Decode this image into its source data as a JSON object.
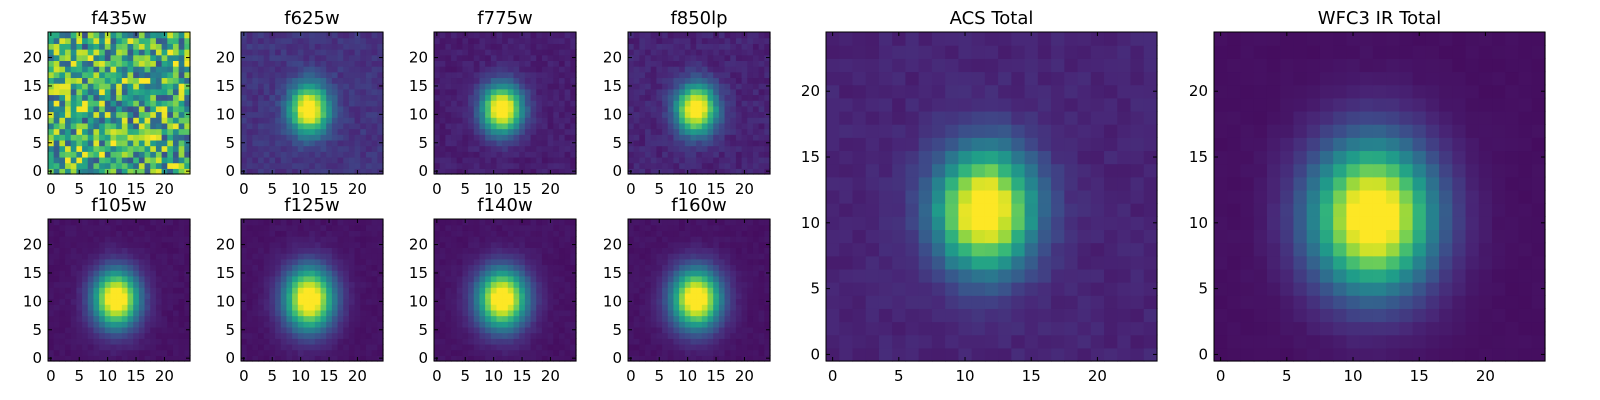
{
  "figure": {
    "description_type": "heatmap-grid",
    "colormap": [
      "#440154",
      "#482878",
      "#3e4989",
      "#31688e",
      "#26828e",
      "#1f9e89",
      "#35b779",
      "#6ece58",
      "#b5de2b",
      "#fde725"
    ],
    "background_color": "#ffffff"
  },
  "chart_data": [
    {
      "type": "heatmap",
      "title": "f435w",
      "grid_size": 25,
      "pattern": "noise",
      "peak": [
        11.5,
        11
      ],
      "spread": [
        3,
        3
      ],
      "noise": 0.5,
      "xlim": [
        0,
        24
      ],
      "ylim": [
        0,
        24
      ],
      "xticks": [
        0,
        5,
        10,
        15,
        20
      ],
      "yticks": [
        0,
        5,
        10,
        15,
        20
      ],
      "colormap": "viridis"
    },
    {
      "type": "heatmap",
      "title": "f625w",
      "grid_size": 25,
      "pattern": "blob",
      "peak": [
        11.5,
        11
      ],
      "spread": [
        2.4,
        3.0
      ],
      "noise": 0.09,
      "base": 0.15,
      "xlim": [
        0,
        24
      ],
      "ylim": [
        0,
        24
      ],
      "xticks": [
        0,
        5,
        10,
        15,
        20
      ],
      "yticks": [
        0,
        5,
        10,
        15,
        20
      ],
      "colormap": "viridis"
    },
    {
      "type": "heatmap",
      "title": "f775w",
      "grid_size": 25,
      "pattern": "blob",
      "peak": [
        11.5,
        11
      ],
      "spread": [
        2.5,
        3.0
      ],
      "noise": 0.06,
      "base": 0.08,
      "xlim": [
        0,
        24
      ],
      "ylim": [
        0,
        24
      ],
      "xticks": [
        0,
        5,
        10,
        15,
        20
      ],
      "yticks": [
        0,
        5,
        10,
        15,
        20
      ],
      "colormap": "viridis"
    },
    {
      "type": "heatmap",
      "title": "f850lp",
      "grid_size": 25,
      "pattern": "blob",
      "peak": [
        11.5,
        11
      ],
      "spread": [
        2.5,
        3.0
      ],
      "noise": 0.08,
      "base": 0.1,
      "xlim": [
        0,
        24
      ],
      "ylim": [
        0,
        24
      ],
      "xticks": [
        0,
        5,
        10,
        15,
        20
      ],
      "yticks": [
        0,
        5,
        10,
        15,
        20
      ],
      "colormap": "viridis"
    },
    {
      "type": "heatmap",
      "title": "f105w",
      "grid_size": 25,
      "pattern": "blob",
      "peak": [
        11.5,
        10.5
      ],
      "spread": [
        2.8,
        3.5
      ],
      "noise": 0.03,
      "base": 0.05,
      "xlim": [
        0,
        24
      ],
      "ylim": [
        0,
        24
      ],
      "xticks": [
        0,
        5,
        10,
        15,
        20
      ],
      "yticks": [
        0,
        5,
        10,
        15,
        20
      ],
      "colormap": "viridis"
    },
    {
      "type": "heatmap",
      "title": "f125w",
      "grid_size": 25,
      "pattern": "blob",
      "peak": [
        11.5,
        10.5
      ],
      "spread": [
        3.0,
        3.8
      ],
      "noise": 0.03,
      "base": 0.05,
      "xlim": [
        0,
        24
      ],
      "ylim": [
        0,
        24
      ],
      "xticks": [
        0,
        5,
        10,
        15,
        20
      ],
      "yticks": [
        0,
        5,
        10,
        15,
        20
      ],
      "colormap": "viridis"
    },
    {
      "type": "heatmap",
      "title": "f140w",
      "grid_size": 25,
      "pattern": "blob",
      "peak": [
        11.5,
        10.5
      ],
      "spread": [
        3.0,
        3.6
      ],
      "noise": 0.03,
      "base": 0.05,
      "xlim": [
        0,
        24
      ],
      "ylim": [
        0,
        24
      ],
      "xticks": [
        0,
        5,
        10,
        15,
        20
      ],
      "yticks": [
        0,
        5,
        10,
        15,
        20
      ],
      "colormap": "viridis"
    },
    {
      "type": "heatmap",
      "title": "f160w",
      "grid_size": 25,
      "pattern": "blob",
      "peak": [
        11.5,
        10.5
      ],
      "spread": [
        3.0,
        3.6
      ],
      "noise": 0.03,
      "base": 0.05,
      "xlim": [
        0,
        24
      ],
      "ylim": [
        0,
        24
      ],
      "xticks": [
        0,
        5,
        10,
        15,
        20
      ],
      "yticks": [
        0,
        5,
        10,
        15,
        20
      ],
      "colormap": "viridis"
    },
    {
      "type": "heatmap",
      "title": "ACS Total",
      "grid_size": 25,
      "pattern": "blob",
      "peak": [
        11.5,
        11
      ],
      "spread": [
        2.6,
        3.2
      ],
      "noise": 0.05,
      "base": 0.1,
      "xlim": [
        0,
        24
      ],
      "ylim": [
        0,
        24
      ],
      "xticks": [
        0,
        5,
        10,
        15,
        20
      ],
      "yticks": [
        0,
        5,
        10,
        15,
        20
      ],
      "colormap": "viridis"
    },
    {
      "type": "heatmap",
      "title": "WFC3 IR Total",
      "grid_size": 25,
      "pattern": "blob",
      "peak": [
        11.5,
        10.5
      ],
      "spread": [
        3.2,
        3.9
      ],
      "noise": 0.015,
      "base": 0.04,
      "xlim": [
        0,
        24
      ],
      "ylim": [
        0,
        24
      ],
      "xticks": [
        0,
        5,
        10,
        15,
        20
      ],
      "yticks": [
        0,
        5,
        10,
        15,
        20
      ],
      "colormap": "viridis"
    }
  ]
}
